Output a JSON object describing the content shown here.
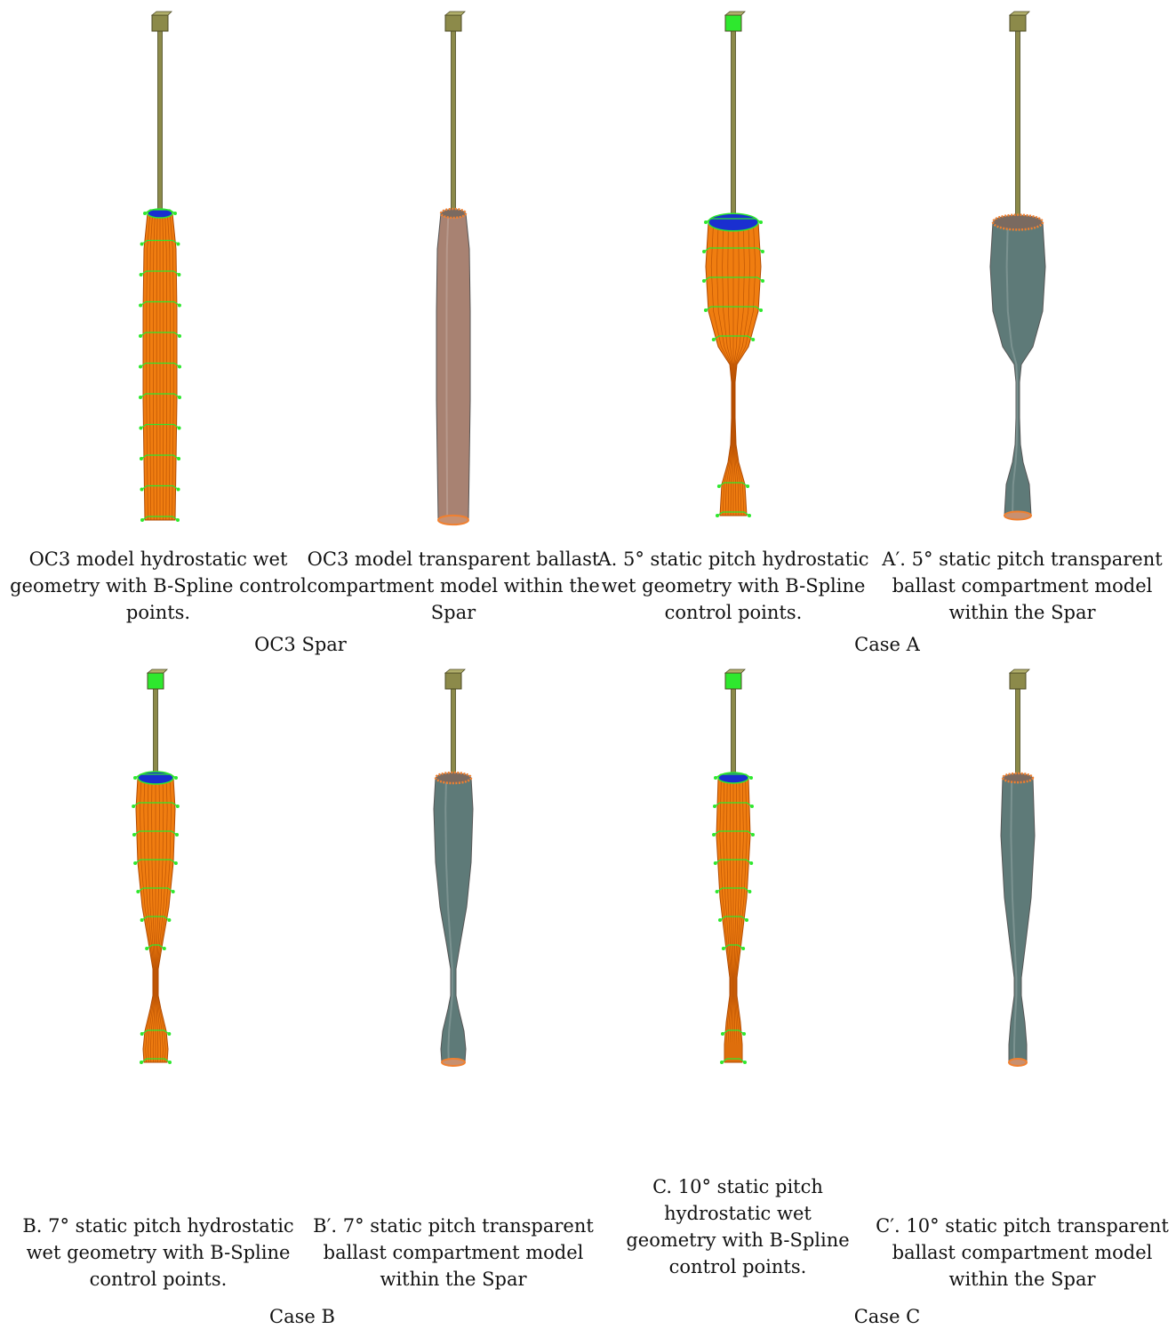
{
  "figure": {
    "groups": [
      {
        "label": "OC3 Spar",
        "panels": [
          {
            "caption": "OC3 model hydrostatic wet geometry with B-Spline control points.",
            "style": "wet",
            "shape": "straight"
          },
          {
            "caption": "OC3 model transparent ballast compartment model within the Spar",
            "style": "solid-brown",
            "shape": "straight"
          }
        ]
      },
      {
        "label": "Case A",
        "panels": [
          {
            "caption": "A. 5° static pitch hydrostatic wet geometry with B-Spline control points.",
            "style": "wet",
            "shape": "bulb-A"
          },
          {
            "caption": "A′. 5° static pitch transparent ballast compartment model within the Spar",
            "style": "solid-grey",
            "shape": "bulb-A"
          }
        ]
      },
      {
        "label": "Case B",
        "panels": [
          {
            "caption": "B. 7° static pitch hydrostatic wet geometry with B-Spline control points.",
            "style": "wet",
            "shape": "waist-B"
          },
          {
            "caption": "B′. 7° static pitch transparent ballast compartment model within the Spar",
            "style": "solid-grey",
            "shape": "waist-B"
          }
        ]
      },
      {
        "label": "Case C",
        "panels": [
          {
            "caption": "C. 10° static pitch hydrostatic wet geometry with B-Spline control points.",
            "style": "wet",
            "shape": "waist-C"
          },
          {
            "caption": "C′. 10° static pitch transparent ballast compartment model within the Spar",
            "style": "solid-grey",
            "shape": "waist-C"
          }
        ]
      }
    ],
    "colors": {
      "tower": "#8c8a4a",
      "wet_body": "#f07d10",
      "mesh_line": "#b04a00",
      "control_point": "#2ee82e",
      "top_cap": "#1a2fd0",
      "solid_brown": "#a88272",
      "solid_grey": "#5e7a78",
      "rim": "#f08030"
    }
  }
}
